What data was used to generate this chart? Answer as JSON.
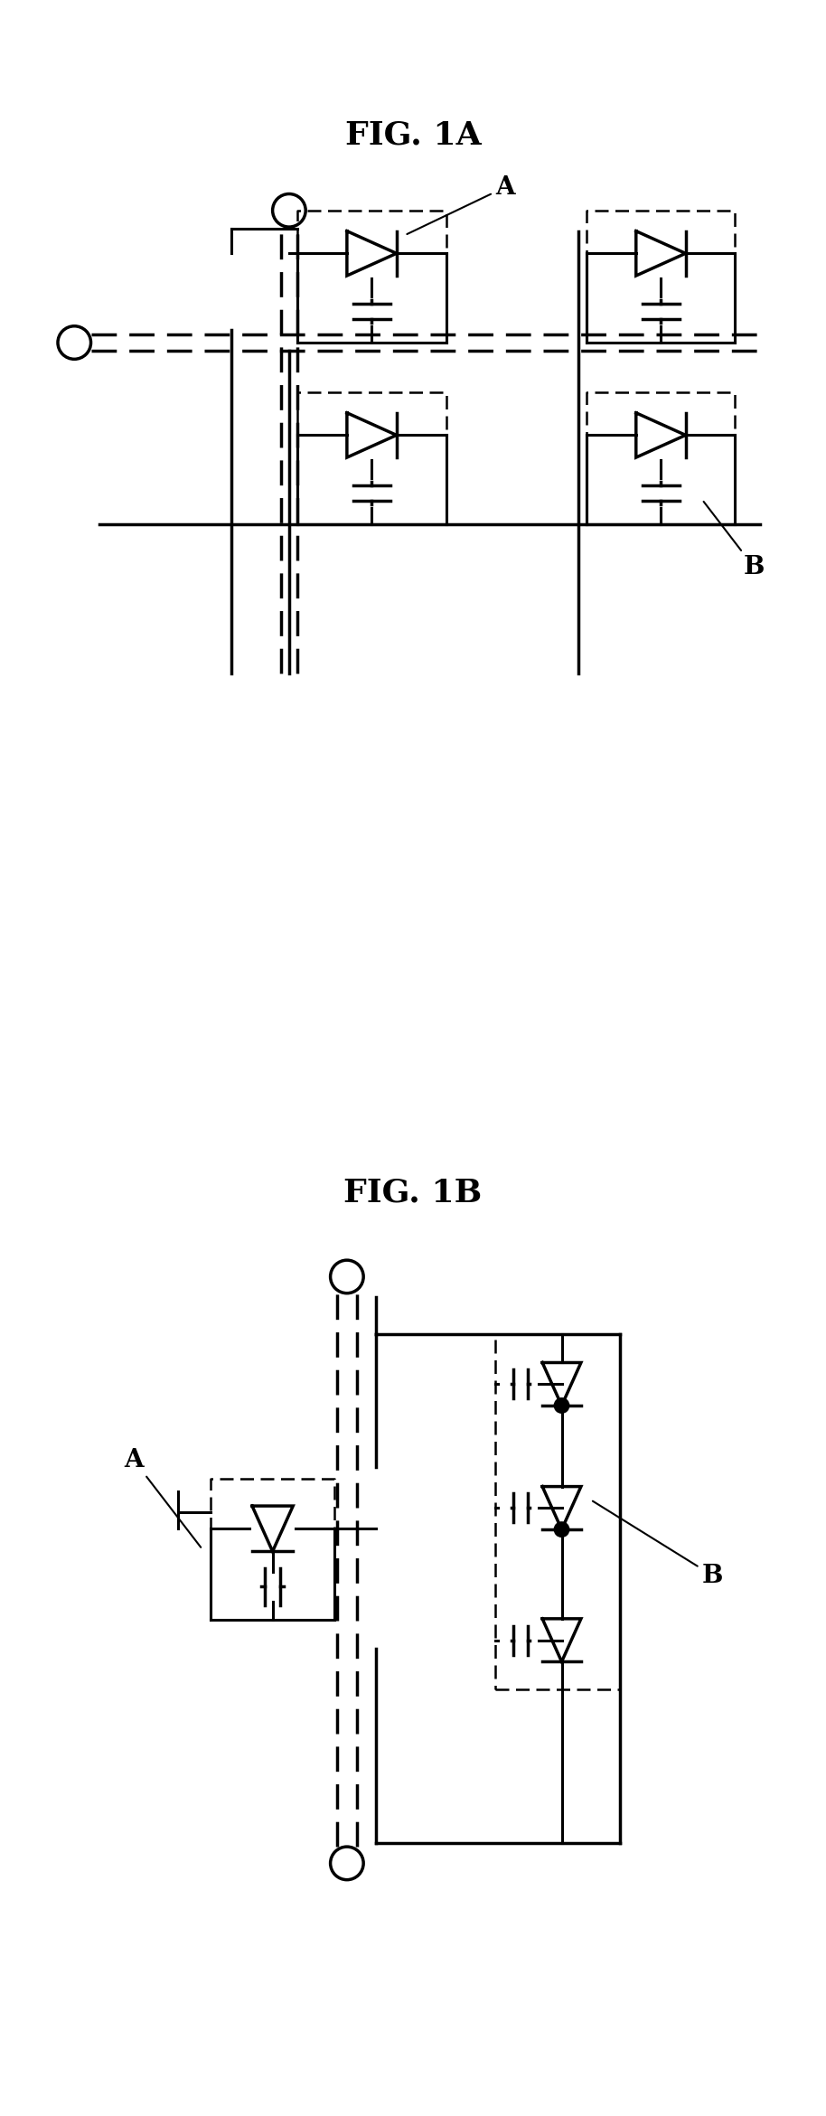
{
  "fig_title_1A": "FIG. 1A",
  "fig_title_1B": "FIG. 1B",
  "label_A": "A",
  "label_B": "B",
  "bg_color": "#ffffff",
  "line_color": "#000000",
  "title_fontsize": 26,
  "label_fontsize": 20
}
